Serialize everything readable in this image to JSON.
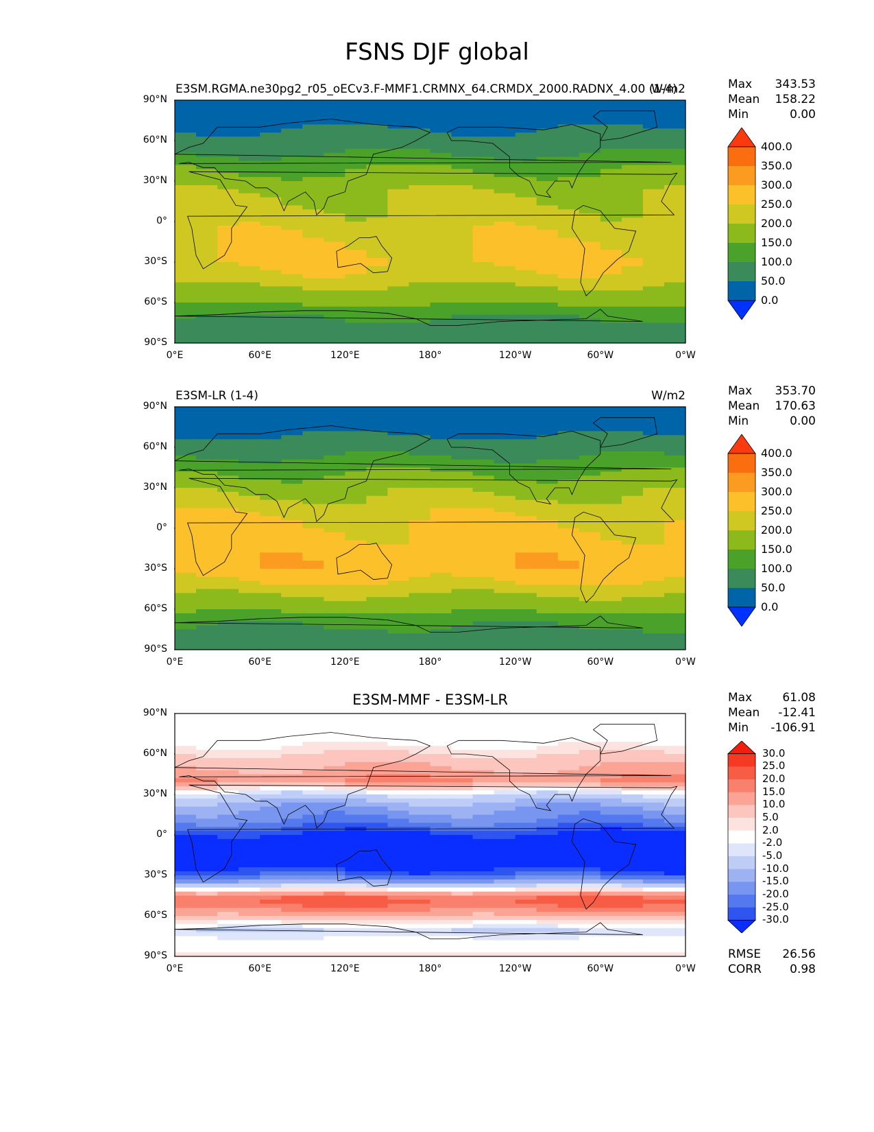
{
  "figure": {
    "title": "FSNS DJF global"
  },
  "axes": {
    "lat_ticks": [
      "90°N",
      "60°N",
      "30°N",
      "0°",
      "30°S",
      "60°S",
      "90°S"
    ],
    "lon_ticks": [
      "0°E",
      "60°E",
      "120°E",
      "180°",
      "120°W",
      "60°W",
      "0°W"
    ]
  },
  "panels": [
    {
      "title_left": "E3SM.RGMA.ne30pg2_r05_oECv3.F-MMF1.CRMNX_64.CRMDX_2000.RADNX_4.00 (1-4)",
      "title_center": "",
      "title_right": "W/m2",
      "stats": [
        {
          "label": "Max",
          "value": "343.53"
        },
        {
          "label": "Mean",
          "value": "158.22"
        },
        {
          "label": "Min",
          "value": "0.00"
        }
      ],
      "colorbar_ticks": [
        "400.0",
        "350.0",
        "300.0",
        "250.0",
        "200.0",
        "150.0",
        "100.0",
        "50.0",
        "0.0"
      ]
    },
    {
      "title_left": "E3SM-LR (1-4)",
      "title_center": "",
      "title_right": "W/m2",
      "stats": [
        {
          "label": "Max",
          "value": "353.70"
        },
        {
          "label": "Mean",
          "value": "170.63"
        },
        {
          "label": "Min",
          "value": "0.00"
        }
      ],
      "colorbar_ticks": [
        "400.0",
        "350.0",
        "300.0",
        "250.0",
        "200.0",
        "150.0",
        "100.0",
        "50.0",
        "0.0"
      ]
    },
    {
      "title_left": "",
      "title_center": "E3SM-MMF - E3SM-LR",
      "title_right": "",
      "stats": [
        {
          "label": "Max",
          "value": "61.08"
        },
        {
          "label": "Mean",
          "value": "-12.41"
        },
        {
          "label": "Min",
          "value": "-106.91"
        }
      ],
      "colorbar_ticks": [
        "30.0",
        "25.0",
        "20.0",
        "15.0",
        "10.0",
        "5.0",
        "2.0",
        "-2.0",
        "-5.0",
        "-10.0",
        "-15.0",
        "-20.0",
        "-25.0",
        "-30.0"
      ],
      "metrics": [
        {
          "label": "RMSE",
          "value": "26.56"
        },
        {
          "label": "CORR",
          "value": "0.98"
        }
      ]
    }
  ],
  "chart_data": [
    {
      "type": "heatmap",
      "title": "E3SM.RGMA.ne30pg2_r05_oECv3.F-MMF1.CRMNX_64.CRMDX_2000.RADNX_4.00 (1-4)",
      "units": "W/m2",
      "x_range": [
        0,
        360
      ],
      "y_range": [
        -90,
        90
      ],
      "levels": [
        0,
        50,
        100,
        150,
        200,
        250,
        300,
        350,
        400
      ],
      "colors": [
        "#0032ff",
        "#0064a8",
        "#3a8a5a",
        "#4aa22a",
        "#8cba1c",
        "#cfc823",
        "#fbc02a",
        "#fb9b1f",
        "#fb6e10",
        "#fd3a0e"
      ],
      "zonal_profile_lat": [
        90,
        85,
        80,
        70,
        60,
        50,
        40,
        30,
        20,
        10,
        0,
        -10,
        -20,
        -30,
        -40,
        -50,
        -60,
        -70,
        -80,
        -90
      ],
      "zonal_profile_value": [
        0,
        20,
        35,
        45,
        70,
        100,
        140,
        175,
        200,
        215,
        225,
        240,
        255,
        260,
        235,
        190,
        160,
        100,
        90,
        85
      ],
      "max": 343.53,
      "mean": 158.22,
      "min": 0.0
    },
    {
      "type": "heatmap",
      "title": "E3SM-LR (1-4)",
      "units": "W/m2",
      "x_range": [
        0,
        360
      ],
      "y_range": [
        -90,
        90
      ],
      "levels": [
        0,
        50,
        100,
        150,
        200,
        250,
        300,
        350,
        400
      ],
      "colors": [
        "#0032ff",
        "#0064a8",
        "#3a8a5a",
        "#4aa22a",
        "#8cba1c",
        "#cfc823",
        "#fbc02a",
        "#fb9b1f",
        "#fb6e10",
        "#fd3a0e"
      ],
      "zonal_profile_lat": [
        90,
        85,
        80,
        70,
        60,
        50,
        40,
        30,
        20,
        10,
        0,
        -10,
        -20,
        -30,
        -40,
        -50,
        -60,
        -70,
        -80,
        -90
      ],
      "zonal_profile_value": [
        0,
        20,
        35,
        45,
        75,
        110,
        150,
        185,
        215,
        240,
        260,
        270,
        280,
        285,
        250,
        195,
        165,
        105,
        90,
        85
      ],
      "max": 353.7,
      "mean": 170.63,
      "min": 0.0
    },
    {
      "type": "heatmap",
      "title": "E3SM-MMF - E3SM-LR",
      "x_range": [
        0,
        360
      ],
      "y_range": [
        -90,
        90
      ],
      "levels": [
        -30,
        -25,
        -20,
        -15,
        -10,
        -5,
        -2,
        2,
        5,
        10,
        15,
        20,
        25,
        30
      ],
      "colors": [
        "#0a2eff",
        "#2f55f0",
        "#5478ee",
        "#7896ef",
        "#9cb2f2",
        "#bdcdf6",
        "#dfe6fb",
        "#ffffff",
        "#fde3e0",
        "#fcc6bf",
        "#fba395",
        "#f9806c",
        "#f75c45",
        "#f43a22",
        "#f21f0c"
      ],
      "zonal_profile_lat": [
        90,
        80,
        70,
        60,
        50,
        40,
        30,
        20,
        10,
        0,
        -10,
        -20,
        -30,
        -40,
        -45,
        -50,
        -60,
        -70,
        -80,
        -90
      ],
      "zonal_profile_value": [
        0,
        0,
        0,
        5,
        10,
        15,
        -5,
        -15,
        -20,
        -32,
        -40,
        -38,
        -25,
        0,
        18,
        22,
        10,
        -5,
        0,
        3
      ],
      "max": 61.08,
      "mean": -12.41,
      "min": -106.91,
      "rmse": 26.56,
      "corr": 0.98
    }
  ]
}
